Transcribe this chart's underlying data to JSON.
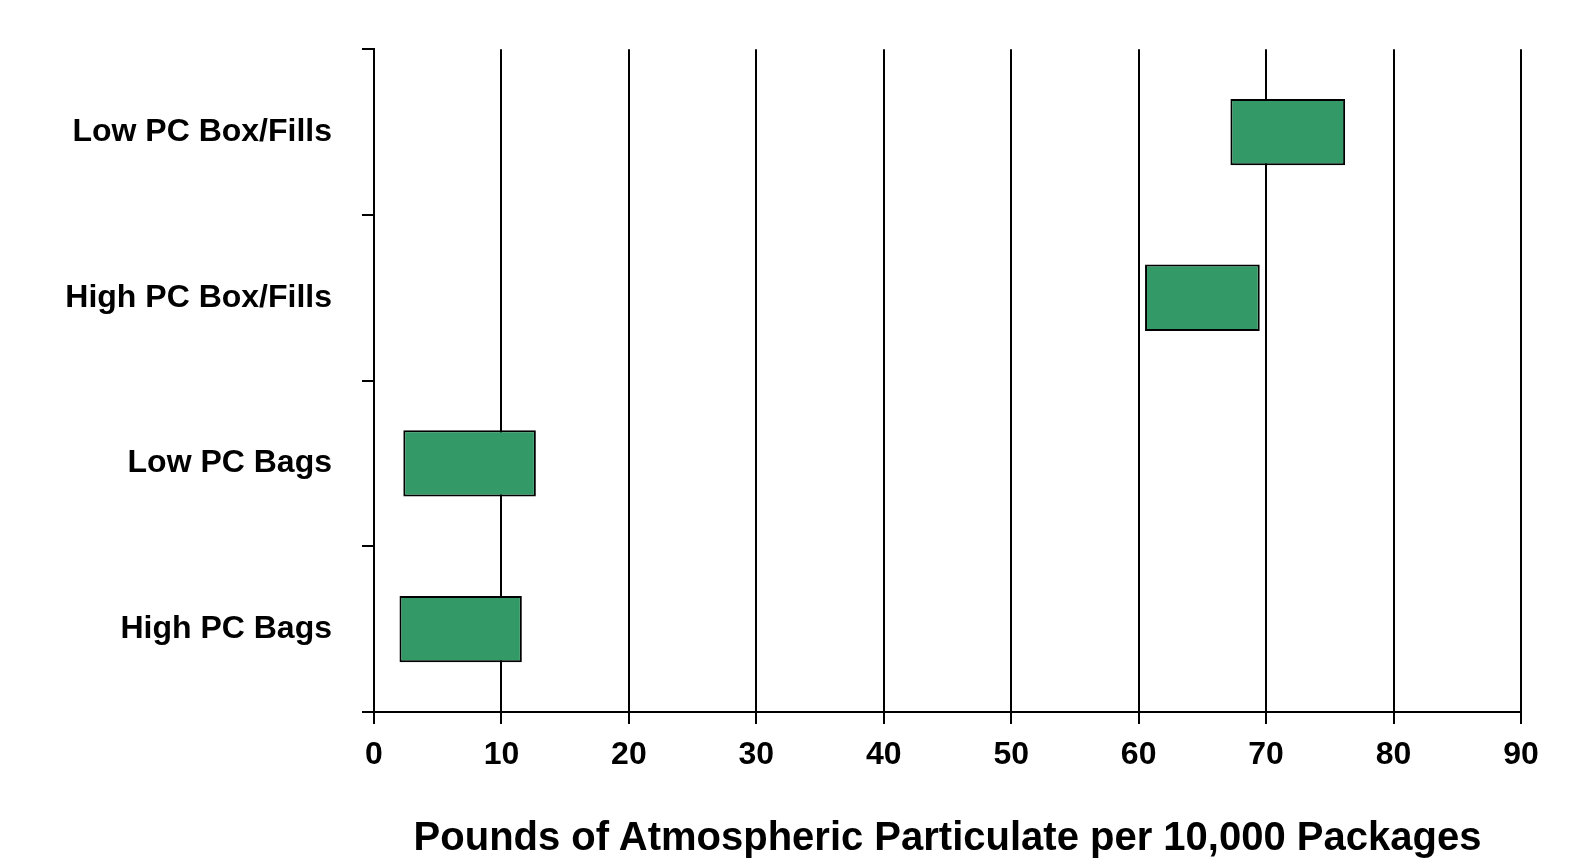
{
  "chart_data": {
    "type": "bar",
    "orientation": "horizontal",
    "xlabel": "Pounds of Atmospheric Particulate per 10,000 Packages",
    "categories": [
      "Low PC Box/Fills",
      "High PC Box/Fills",
      "Low PC Bags",
      "High PC Bags"
    ],
    "base": [
      67.2,
      60.5,
      2.3,
      2.0
    ],
    "values": [
      9.0,
      9.0,
      10.4,
      9.6
    ],
    "color": "#339966",
    "xlim": [
      0,
      90
    ],
    "xticks": [
      0,
      10,
      20,
      30,
      40,
      50,
      60,
      70,
      80,
      90
    ],
    "grid": "x",
    "legend": false
  }
}
